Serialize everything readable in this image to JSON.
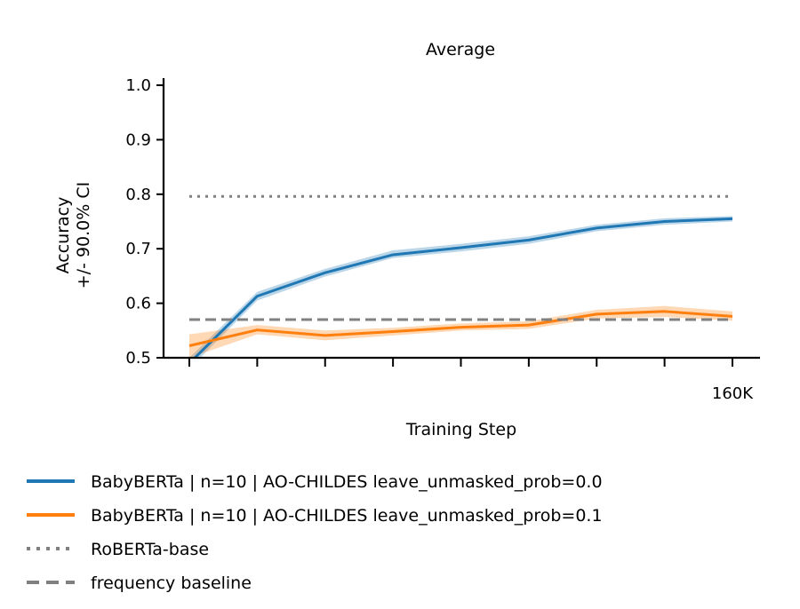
{
  "chart_data": {
    "type": "line",
    "title": "Average",
    "xlabel": "Training Step",
    "ylabel_lines": [
      "Accuracy",
      "+/- 90.0% CI"
    ],
    "x": [
      0,
      20000,
      40000,
      60000,
      80000,
      100000,
      120000,
      140000,
      160000
    ],
    "x_tick_labels": [
      "",
      "",
      "",
      "",
      "",
      "",
      "",
      "",
      "160K"
    ],
    "ylim": [
      0.5,
      1.0
    ],
    "y_ticks": [
      0.5,
      0.6,
      0.7,
      0.8,
      0.9,
      1.0
    ],
    "y_tick_labels": [
      "0.5",
      "0.6",
      "0.7",
      "0.8",
      "0.9",
      "1.0"
    ],
    "grid": false,
    "legend_position": "bottom-outside",
    "series": [
      {
        "name": "BabyBERTa | n=10 | AO-CHILDES leave_unmasked_prob=0.0",
        "color": "#1f77b4",
        "style": "solid",
        "values": [
          0.49,
          0.613,
          0.656,
          0.689,
          0.702,
          0.716,
          0.738,
          0.75,
          0.755
        ],
        "ci_low": [
          0.48,
          0.605,
          0.649,
          0.683,
          0.695,
          0.709,
          0.732,
          0.744,
          0.75
        ],
        "ci_high": [
          0.5,
          0.621,
          0.663,
          0.697,
          0.709,
          0.723,
          0.744,
          0.756,
          0.76
        ]
      },
      {
        "name": "BabyBERTa | n=10 | AO-CHILDES leave_unmasked_prob=0.1",
        "color": "#ff7f0e",
        "style": "solid",
        "values": [
          0.522,
          0.551,
          0.541,
          0.548,
          0.556,
          0.56,
          0.58,
          0.585,
          0.576
        ],
        "ci_low": [
          0.5,
          0.543,
          0.532,
          0.541,
          0.55,
          0.553,
          0.572,
          0.575,
          0.568
        ],
        "ci_high": [
          0.543,
          0.56,
          0.55,
          0.555,
          0.563,
          0.567,
          0.588,
          0.595,
          0.585
        ]
      },
      {
        "name": "RoBERTa-base",
        "color": "#808080",
        "style": "dotted",
        "values": [
          0.796,
          0.796,
          0.796,
          0.796,
          0.796,
          0.796,
          0.796,
          0.796,
          0.796
        ]
      },
      {
        "name": "frequency baseline",
        "color": "#808080",
        "style": "dashed",
        "values": [
          0.57,
          0.57,
          0.57,
          0.57,
          0.57,
          0.57,
          0.57,
          0.57,
          0.57
        ]
      }
    ]
  }
}
